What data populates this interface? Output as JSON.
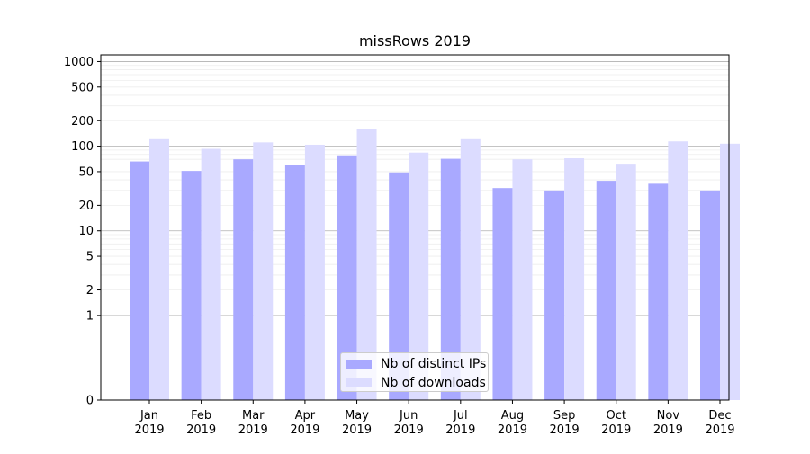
{
  "chart_data": {
    "type": "bar",
    "title": "missRows 2019",
    "xlabel": "",
    "ylabel": "",
    "yscale": "symlog",
    "ylim": [
      0,
      1200
    ],
    "yticks": [
      "0",
      "1",
      "2",
      "5",
      "10",
      "20",
      "50",
      "100",
      "200",
      "500",
      "1000"
    ],
    "categories": [
      {
        "month": "Jan",
        "year": "2019"
      },
      {
        "month": "Feb",
        "year": "2019"
      },
      {
        "month": "Mar",
        "year": "2019"
      },
      {
        "month": "Apr",
        "year": "2019"
      },
      {
        "month": "May",
        "year": "2019"
      },
      {
        "month": "Jun",
        "year": "2019"
      },
      {
        "month": "Jul",
        "year": "2019"
      },
      {
        "month": "Aug",
        "year": "2019"
      },
      {
        "month": "Sep",
        "year": "2019"
      },
      {
        "month": "Oct",
        "year": "2019"
      },
      {
        "month": "Nov",
        "year": "2019"
      },
      {
        "month": "Dec",
        "year": "2019"
      }
    ],
    "series": [
      {
        "name": "Nb of distinct IPs",
        "color": "#a9a9ff",
        "values": [
          66,
          51,
          70,
          60,
          78,
          49,
          71,
          32,
          30,
          39,
          36,
          30
        ]
      },
      {
        "name": "Nb of downloads",
        "color": "#dcdcff",
        "values": [
          121,
          93,
          111,
          104,
          160,
          84,
          121,
          70,
          72,
          62,
          114,
          107
        ]
      }
    ],
    "grid": true,
    "legend_position": "bottom-center"
  }
}
